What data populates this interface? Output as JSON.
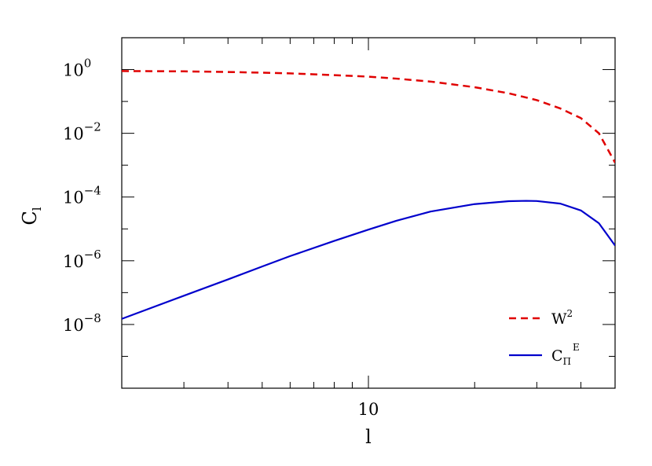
{
  "chart_data": {
    "type": "line",
    "xlabel": "l",
    "ylabel": "C",
    "ylabel_subscript": "l",
    "x_scale": "log",
    "y_scale": "log",
    "xlim": [
      2,
      50
    ],
    "ylim": [
      1e-10,
      10
    ],
    "x_tick_labels": [
      {
        "value": 10,
        "label": "10"
      }
    ],
    "y_tick_labels": [
      {
        "value": 1,
        "base": "10",
        "exp": "0"
      },
      {
        "value": 0.01,
        "base": "10",
        "exp": "−2"
      },
      {
        "value": 0.0001,
        "base": "10",
        "exp": "−4"
      },
      {
        "value": 1e-06,
        "base": "10",
        "exp": "−6"
      },
      {
        "value": 1e-08,
        "base": "10",
        "exp": "−8"
      }
    ],
    "legend_position": "bottom-right",
    "series": [
      {
        "name": "W",
        "name_superscript": "2",
        "color": "#e00000",
        "style": "dashed",
        "x": [
          2,
          3,
          4,
          5,
          6,
          8,
          10,
          12,
          15,
          20,
          25,
          30,
          35,
          40,
          45,
          50
        ],
        "y": [
          0.9,
          0.88,
          0.84,
          0.8,
          0.76,
          0.67,
          0.6,
          0.52,
          0.42,
          0.28,
          0.18,
          0.11,
          0.06,
          0.03,
          0.01,
          0.0012
        ]
      },
      {
        "name": "C",
        "name_subscript": "Π",
        "name_superscript": "E",
        "color": "#0000cc",
        "style": "solid",
        "x": [
          2,
          3,
          4,
          5,
          6,
          8,
          10,
          12,
          15,
          20,
          25,
          28,
          30,
          35,
          40,
          45,
          50
        ],
        "y": [
          1.5e-08,
          8e-08,
          2.6e-07,
          6.6e-07,
          1.4e-06,
          4.2e-06,
          9.5e-06,
          1.8e-05,
          3.5e-05,
          6e-05,
          7.4e-05,
          7.6e-05,
          7.5e-05,
          6.2e-05,
          3.8e-05,
          1.5e-05,
          3e-06
        ]
      }
    ]
  }
}
